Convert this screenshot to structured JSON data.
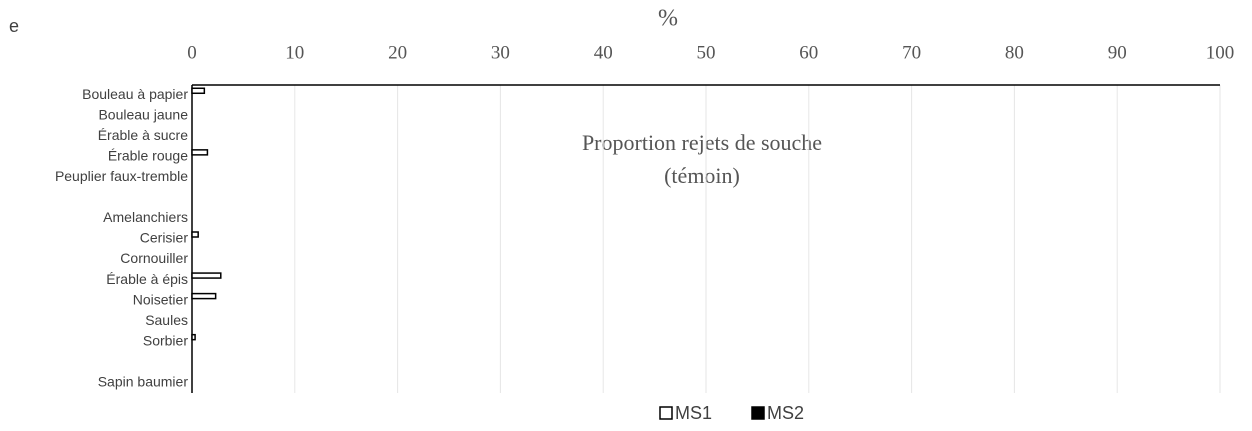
{
  "chart_data": {
    "type": "hbar",
    "panel_label": "e",
    "x_label": "%",
    "annotations": [
      "Proportion rejets de souche",
      "(témoin)"
    ],
    "categories": [
      "Bouleau à papier",
      "Bouleau jaune",
      "Érable à sucre",
      "Érable rouge",
      "Peuplier faux-tremble",
      null,
      "Amelanchiers",
      "Cerisier",
      "Cornouiller",
      "Érable à épis",
      "Noisetier",
      "Saules",
      "Sorbier",
      null,
      "Sapin baumier"
    ],
    "series": [
      {
        "name": "MS1",
        "color": "#ffffff",
        "values": [
          1.2,
          0,
          0,
          1.5,
          0,
          null,
          0,
          0.6,
          0,
          2.8,
          2.3,
          0,
          0.3,
          null,
          0
        ]
      },
      {
        "name": "MS2",
        "color": "#000000",
        "values": [
          0,
          0,
          0,
          0,
          0,
          null,
          0,
          0,
          0,
          0,
          0,
          0,
          0,
          null,
          0
        ]
      }
    ],
    "xlim": [
      0,
      100
    ],
    "xticks": [
      0,
      10,
      20,
      30,
      40,
      50,
      60,
      70,
      80,
      90,
      100
    ],
    "grid": true
  }
}
